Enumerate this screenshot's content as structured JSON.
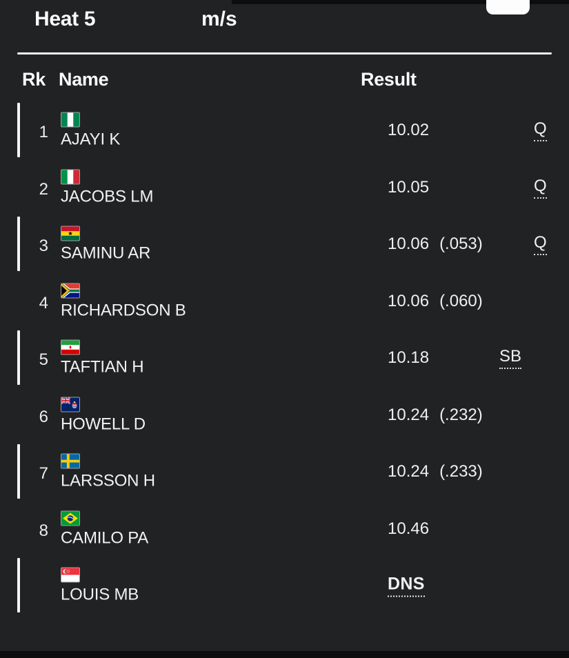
{
  "header": {
    "title": "Heat 5",
    "wind_unit": "m/s"
  },
  "table": {
    "columns": {
      "rank": "Rk",
      "name": "Name",
      "result": "Result"
    },
    "rows": [
      {
        "rank": "1",
        "name": "AJAYI K",
        "country": "nigeria",
        "flag_icon": "flag-nigeria-icon",
        "result": "10.02",
        "fraction": "",
        "mark": "Q",
        "dns": false,
        "marked": true
      },
      {
        "rank": "2",
        "name": "JACOBS LM",
        "country": "italy",
        "flag_icon": "flag-italy-icon",
        "result": "10.05",
        "fraction": "",
        "mark": "Q",
        "dns": false,
        "marked": false
      },
      {
        "rank": "3",
        "name": "SAMINU AR",
        "country": "ghana",
        "flag_icon": "flag-ghana-icon",
        "result": "10.06",
        "fraction": "(.053)",
        "mark": "Q",
        "dns": false,
        "marked": true
      },
      {
        "rank": "4",
        "name": "RICHARDSON B",
        "country": "south-africa",
        "flag_icon": "flag-south-africa-icon",
        "result": "10.06",
        "fraction": "(.060)",
        "mark": "",
        "dns": false,
        "marked": false
      },
      {
        "rank": "5",
        "name": "TAFTIAN H",
        "country": "iran",
        "flag_icon": "flag-iran-icon",
        "result": "10.18",
        "fraction": "",
        "mark": "SB",
        "dns": false,
        "marked": true
      },
      {
        "rank": "6",
        "name": "HOWELL D",
        "country": "cayman-islands",
        "flag_icon": "flag-cayman-islands-icon",
        "result": "10.24",
        "fraction": "(.232)",
        "mark": "",
        "dns": false,
        "marked": false
      },
      {
        "rank": "7",
        "name": "LARSSON H",
        "country": "sweden",
        "flag_icon": "flag-sweden-icon",
        "result": "10.24",
        "fraction": "(.233)",
        "mark": "",
        "dns": false,
        "marked": true
      },
      {
        "rank": "8",
        "name": "CAMILO PA",
        "country": "brazil",
        "flag_icon": "flag-brazil-icon",
        "result": "10.46",
        "fraction": "",
        "mark": "",
        "dns": false,
        "marked": false
      },
      {
        "rank": "",
        "name": "LOUIS MB",
        "country": "singapore",
        "flag_icon": "flag-singapore-icon",
        "result": "DNS",
        "fraction": "",
        "mark": "",
        "dns": true,
        "marked": true
      }
    ]
  },
  "colors": {
    "background": "#212223",
    "text": "#f2f2f2",
    "divider": "#f6f6f6",
    "row_indicator": "#f4f4f4",
    "strip": "#0d0d0e",
    "top_button": "#fdfdfd"
  }
}
